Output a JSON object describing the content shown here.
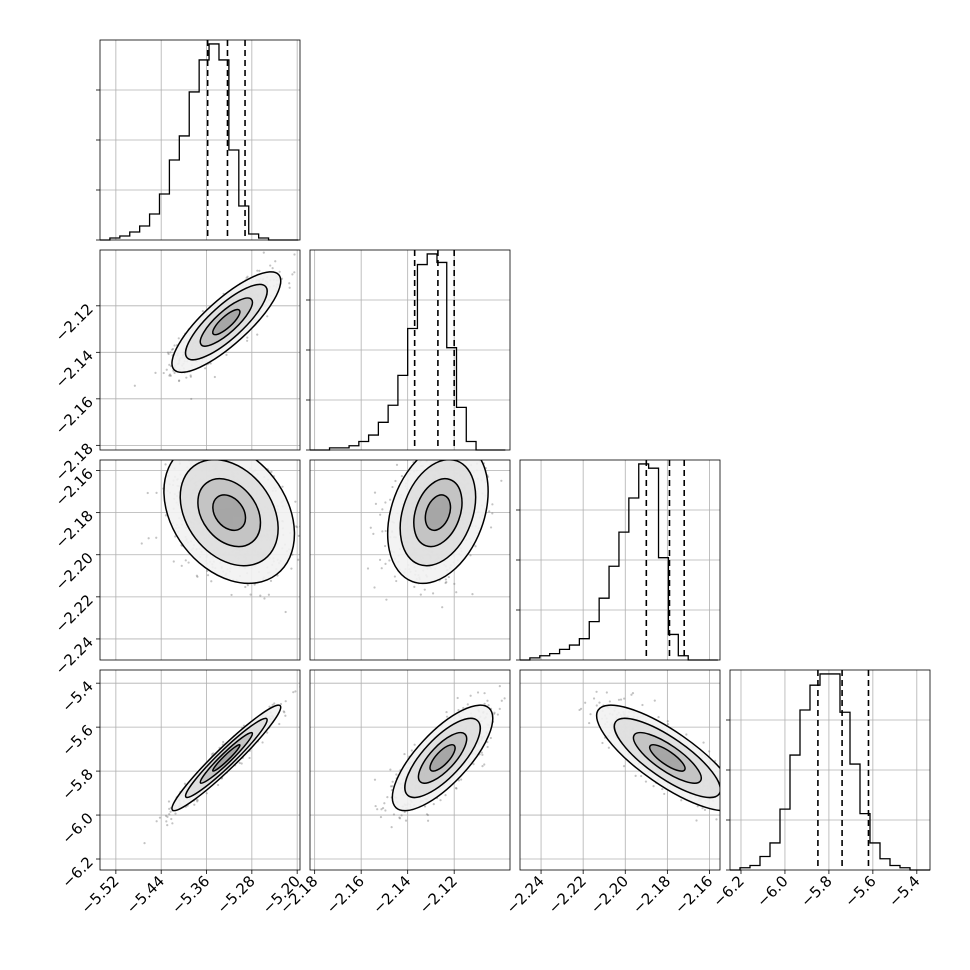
{
  "chart_data": {
    "type": "corner",
    "grid": true,
    "parameters": [
      {
        "ticks": [
          -5.52,
          -5.44,
          -5.36,
          -5.28,
          -5.2
        ],
        "tick_labels": [
          "−5.52",
          "−5.44",
          "−5.36",
          "−5.28",
          "−5.20"
        ],
        "range": [
          -5.548,
          -5.195
        ]
      },
      {
        "ticks": [
          -2.18,
          -2.16,
          -2.14,
          -2.12
        ],
        "tick_labels": [
          "−2.18",
          "−2.16",
          "−2.14",
          "−2.12"
        ],
        "range": [
          -2.182,
          -2.096
        ]
      },
      {
        "ticks": [
          -2.24,
          -2.22,
          -2.2,
          -2.18,
          -2.16
        ],
        "tick_labels": [
          "−2.24",
          "−2.22",
          "−2.20",
          "−2.18",
          "−2.16"
        ],
        "range": [
          -2.25,
          -2.155
        ]
      },
      {
        "ticks": [
          -6.2,
          -6.0,
          -5.8,
          -5.6,
          -5.4
        ],
        "tick_labels": [
          "−6.2",
          "−6.0",
          "−5.8",
          "−5.6",
          "−5.4"
        ],
        "range": [
          -6.25,
          -5.34
        ]
      }
    ],
    "marginals": [
      {
        "quantiles": [
          -5.358,
          -5.323,
          -5.292
        ],
        "bins_left": -5.548,
        "bin_width": 0.0175,
        "counts": [
          0,
          1,
          2,
          4,
          7,
          13,
          23,
          40,
          52,
          74,
          90,
          98,
          90,
          45,
          17,
          3,
          1,
          0,
          0,
          0
        ]
      },
      {
        "quantiles": [
          -2.137,
          -2.127,
          -2.12
        ],
        "bins_left": -2.182,
        "bin_width": 0.0042,
        "counts": [
          0,
          0,
          1,
          1,
          2,
          4,
          7,
          13,
          21,
          35,
          57,
          87,
          92,
          88,
          48,
          20,
          4,
          0,
          0,
          0
        ]
      },
      {
        "quantiles": [
          -2.19,
          -2.179,
          -2.172
        ],
        "bins_left": -2.25,
        "bin_width": 0.0047,
        "counts": [
          0,
          1,
          2,
          3,
          5,
          7,
          10,
          18,
          29,
          44,
          60,
          76,
          92,
          90,
          48,
          12,
          2,
          0,
          0,
          0
        ]
      },
      {
        "quantiles": [
          -5.85,
          -5.74,
          -5.62
        ],
        "bins_left": -6.25,
        "bin_width": 0.0455,
        "counts": [
          0,
          1,
          2,
          6,
          12,
          27,
          51,
          71,
          82,
          87,
          87,
          70,
          47,
          25,
          12,
          5,
          2,
          1,
          0,
          0
        ]
      }
    ],
    "pairs": [
      {
        "x": 0,
        "y": 1,
        "mean": [
          -5.325,
          -2.127
        ],
        "sd": [
          0.04,
          0.009
        ],
        "corr": 0.82
      },
      {
        "x": 0,
        "y": 2,
        "mean": [
          -5.32,
          -2.18
        ],
        "sd": [
          0.048,
          0.014
        ],
        "corr": -0.3
      },
      {
        "x": 1,
        "y": 2,
        "mean": [
          -2.127,
          -2.18
        ],
        "sd": [
          0.009,
          0.014
        ],
        "corr": 0.3
      },
      {
        "x": 0,
        "y": 3,
        "mean": [
          -5.325,
          -5.74
        ],
        "sd": [
          0.04,
          0.1
        ],
        "corr": 0.96
      },
      {
        "x": 1,
        "y": 3,
        "mean": [
          -2.125,
          -5.74
        ],
        "sd": [
          0.009,
          0.1
        ],
        "corr": 0.75
      },
      {
        "x": 2,
        "y": 3,
        "mean": [
          -2.18,
          -5.74
        ],
        "sd": [
          0.014,
          0.1
        ],
        "corr": -0.8
      }
    ],
    "colors": {
      "ink": "#000000",
      "grid": "#b0b0b0",
      "sample": "#7a7a7a"
    }
  }
}
